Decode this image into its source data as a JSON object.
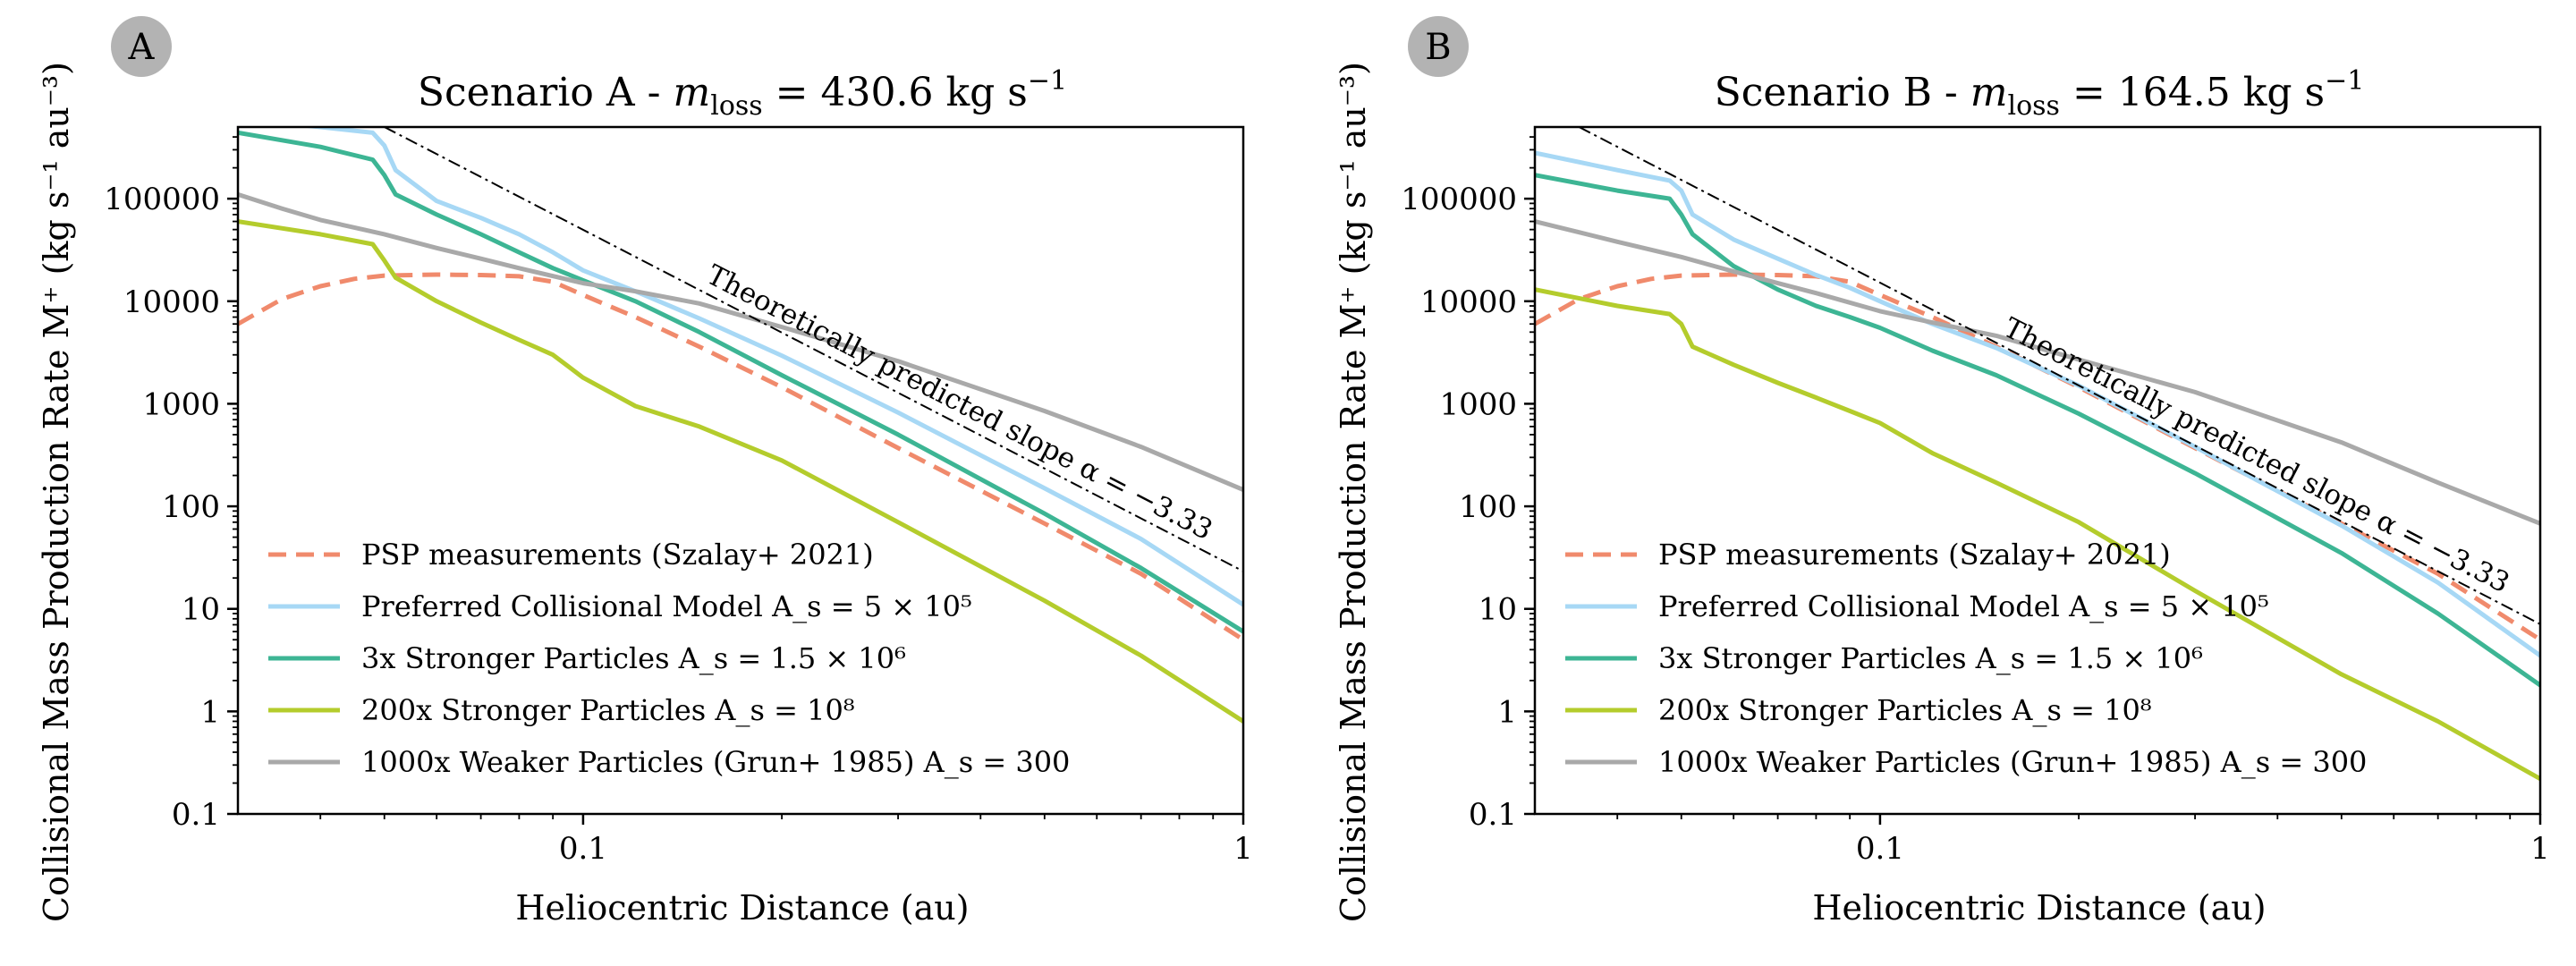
{
  "figure": {
    "y_label": "Collisional Mass Production Rate M⁺ (kg s⁻¹ au⁻³)",
    "x_label": "Heliocentric Distance (au)"
  },
  "chart_data": [
    {
      "panel_letter": "A",
      "title": "Scenario A - m_loss = 430.6 kg s⁻¹",
      "title_parts": {
        "prefix": "Scenario A - ",
        "var": "m",
        "sub": "loss",
        "suffix": " = 430.6 kg s",
        "sup": "−1"
      },
      "type": "line",
      "xscale": "log",
      "yscale": "log",
      "xlim": [
        0.03,
        1
      ],
      "ylim": [
        0.1,
        500000
      ],
      "xticks": [
        0.1,
        1
      ],
      "xtick_labels": [
        "0.1",
        "1"
      ],
      "yticks": [
        0.1,
        1,
        10,
        100,
        1000,
        10000,
        100000
      ],
      "ytick_labels": [
        "0.1",
        "1",
        "10",
        "100",
        "1000",
        "10000",
        "100000"
      ],
      "xlabel": "Heliocentric Distance (au)",
      "ylabel": "Collisional Mass Production Rate M⁺ (kg s⁻¹ au⁻³)",
      "legend_position": "lower-left",
      "annotation": {
        "text": "Theoretically predicted slope α = −3.33",
        "slope": -3.33,
        "anchor_x": 0.05,
        "anchor_y": 500000
      },
      "series": [
        {
          "name": "PSP measurements (Szalay+ 2021)",
          "color": "#f08a6c",
          "dash": "dashed",
          "x": [
            0.03,
            0.035,
            0.04,
            0.045,
            0.05,
            0.06,
            0.07,
            0.08,
            0.09,
            0.1,
            0.12,
            0.15,
            0.2,
            0.3,
            0.5,
            0.7,
            1
          ],
          "y": [
            6000,
            10500,
            14000,
            16500,
            17800,
            18200,
            18000,
            17500,
            15500,
            11500,
            7000,
            3600,
            1450,
            370,
            68,
            22,
            5
          ]
        },
        {
          "name": "Preferred Collisional Model A_s = 5 × 10⁵",
          "color": "#a7d8f5",
          "dash": "solid",
          "x": [
            0.03,
            0.04,
            0.048,
            0.05,
            0.052,
            0.06,
            0.07,
            0.08,
            0.09,
            0.1,
            0.12,
            0.15,
            0.2,
            0.3,
            0.5,
            0.7,
            1
          ],
          "y": [
            600000,
            500000,
            440000,
            330000,
            190000,
            95000,
            65000,
            45000,
            30000,
            20000,
            12500,
            6800,
            2950,
            820,
            150,
            48,
            11
          ]
        },
        {
          "name": "3x Stronger Particles A_s = 1.5 × 10⁶",
          "color": "#3db594",
          "dash": "solid",
          "x": [
            0.03,
            0.04,
            0.048,
            0.05,
            0.052,
            0.06,
            0.07,
            0.08,
            0.09,
            0.1,
            0.12,
            0.15,
            0.2,
            0.3,
            0.5,
            0.7,
            1
          ],
          "y": [
            440000,
            320000,
            240000,
            170000,
            110000,
            70000,
            45000,
            30000,
            21000,
            16000,
            10000,
            5000,
            1900,
            500,
            85,
            25,
            6
          ]
        },
        {
          "name": "200x Stronger Particles A_s = 10⁸",
          "color": "#b4cc2c",
          "dash": "solid",
          "x": [
            0.03,
            0.04,
            0.048,
            0.05,
            0.052,
            0.06,
            0.07,
            0.08,
            0.09,
            0.1,
            0.12,
            0.15,
            0.2,
            0.3,
            0.5,
            0.7,
            1
          ],
          "y": [
            60000,
            45000,
            36000,
            25000,
            17000,
            10000,
            6200,
            4200,
            3000,
            1800,
            950,
            600,
            280,
            70,
            12,
            3.5,
            0.8
          ]
        },
        {
          "name": "1000x Weaker Particles (Grun+ 1985) A_s = 300",
          "color": "#a9a9a9",
          "dash": "solid",
          "x": [
            0.03,
            0.035,
            0.04,
            0.05,
            0.06,
            0.07,
            0.08,
            0.1,
            0.12,
            0.15,
            0.2,
            0.3,
            0.5,
            0.7,
            1
          ],
          "y": [
            110000,
            80000,
            62000,
            45000,
            33000,
            26000,
            21000,
            15000,
            12500,
            9500,
            5600,
            2600,
            850,
            380,
            145
          ]
        }
      ]
    },
    {
      "panel_letter": "B",
      "title": "Scenario B - m_loss = 164.5 kg s⁻¹",
      "title_parts": {
        "prefix": "Scenario B - ",
        "var": "m",
        "sub": "loss",
        "suffix": " = 164.5 kg s",
        "sup": "−1"
      },
      "type": "line",
      "xscale": "log",
      "yscale": "log",
      "xlim": [
        0.03,
        1
      ],
      "ylim": [
        0.1,
        500000
      ],
      "xticks": [
        0.1,
        1
      ],
      "xtick_labels": [
        "0.1",
        "1"
      ],
      "yticks": [
        0.1,
        1,
        10,
        100,
        1000,
        10000,
        100000
      ],
      "ytick_labels": [
        "0.1",
        "1",
        "10",
        "100",
        "1000",
        "10000",
        "100000"
      ],
      "xlabel": "Heliocentric Distance (au)",
      "ylabel": "Collisional Mass Production Rate M⁺ (kg s⁻¹ au⁻³)",
      "legend_position": "lower-left",
      "annotation": {
        "text": "Theoretically predicted slope α = −3.33",
        "slope": -3.33,
        "anchor_x": 0.035,
        "anchor_y": 500000
      },
      "series": [
        {
          "name": "PSP measurements (Szalay+ 2021)",
          "color": "#f08a6c",
          "dash": "dashed",
          "x": [
            0.03,
            0.035,
            0.04,
            0.045,
            0.05,
            0.06,
            0.07,
            0.08,
            0.09,
            0.1,
            0.12,
            0.15,
            0.2,
            0.3,
            0.5,
            0.7,
            1
          ],
          "y": [
            6000,
            10500,
            14000,
            16500,
            17800,
            18200,
            18000,
            17500,
            15500,
            11500,
            7000,
            3600,
            1450,
            370,
            68,
            22,
            5
          ]
        },
        {
          "name": "Preferred Collisional Model A_s = 5 × 10⁵",
          "color": "#a7d8f5",
          "dash": "solid",
          "x": [
            0.03,
            0.04,
            0.048,
            0.05,
            0.052,
            0.06,
            0.07,
            0.08,
            0.09,
            0.1,
            0.12,
            0.15,
            0.2,
            0.3,
            0.5,
            0.7,
            1
          ],
          "y": [
            280000,
            190000,
            150000,
            120000,
            70000,
            40000,
            26000,
            18000,
            13500,
            10000,
            6000,
            3500,
            1500,
            380,
            65,
            18,
            3.5
          ]
        },
        {
          "name": "3x Stronger Particles A_s = 1.5 × 10⁶",
          "color": "#3db594",
          "dash": "solid",
          "x": [
            0.03,
            0.04,
            0.048,
            0.05,
            0.052,
            0.06,
            0.07,
            0.08,
            0.09,
            0.1,
            0.12,
            0.15,
            0.2,
            0.3,
            0.5,
            0.7,
            1
          ],
          "y": [
            170000,
            120000,
            100000,
            70000,
            45000,
            22000,
            13000,
            9000,
            7000,
            5500,
            3300,
            1900,
            800,
            210,
            35,
            9,
            1.8
          ]
        },
        {
          "name": "200x Stronger Particles A_s = 10⁸",
          "color": "#b4cc2c",
          "dash": "solid",
          "x": [
            0.03,
            0.04,
            0.048,
            0.05,
            0.052,
            0.06,
            0.07,
            0.08,
            0.09,
            0.1,
            0.12,
            0.15,
            0.2,
            0.3,
            0.5,
            0.7,
            1
          ],
          "y": [
            13000,
            9000,
            7500,
            6000,
            3600,
            2400,
            1600,
            1150,
            850,
            650,
            330,
            170,
            70,
            15,
            2.3,
            0.8,
            0.22
          ]
        },
        {
          "name": "1000x Weaker Particles (Grun+ 1985) A_s = 300",
          "color": "#a9a9a9",
          "dash": "solid",
          "x": [
            0.03,
            0.035,
            0.04,
            0.05,
            0.06,
            0.07,
            0.08,
            0.1,
            0.12,
            0.15,
            0.2,
            0.3,
            0.5,
            0.7,
            1
          ],
          "y": [
            60000,
            47000,
            38000,
            27000,
            19500,
            15000,
            12000,
            8000,
            6200,
            4600,
            2700,
            1300,
            420,
            170,
            68
          ]
        }
      ]
    }
  ]
}
